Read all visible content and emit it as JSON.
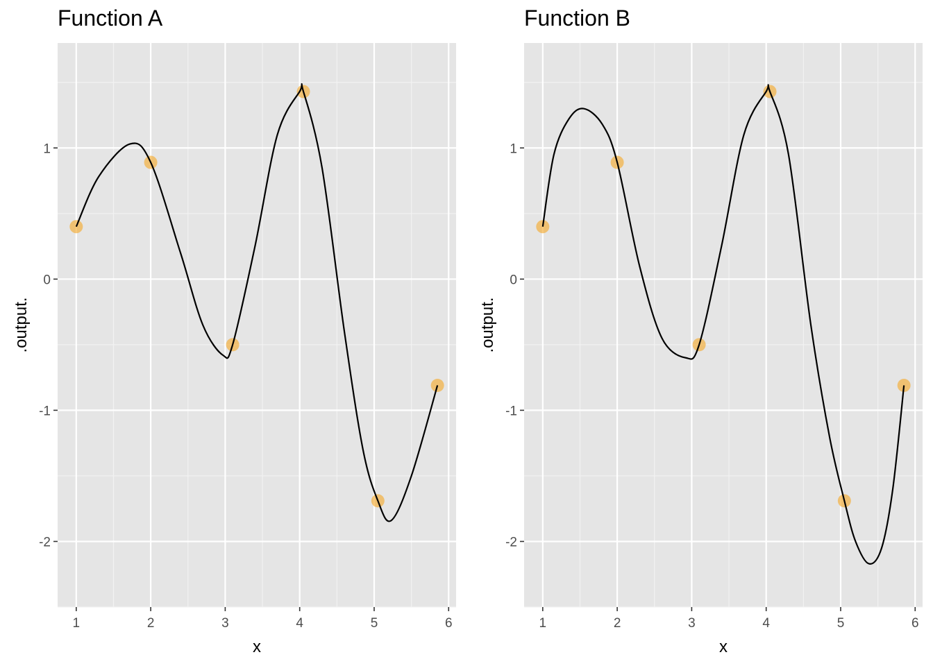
{
  "chart_data": [
    {
      "type": "line",
      "title": "Function A",
      "xlabel": "x",
      "ylabel": ".output.",
      "xlim": [
        0.75,
        6.1
      ],
      "ylim": [
        -2.5,
        1.8
      ],
      "x_ticks": [
        1,
        2,
        3,
        4,
        5,
        6
      ],
      "x_tick_labels": [
        "1",
        "2",
        "3",
        "4",
        "5",
        "6"
      ],
      "y_ticks": [
        -2,
        -1,
        0,
        1
      ],
      "y_tick_labels": [
        "-2",
        "-1",
        "0",
        "1"
      ],
      "grid": true,
      "background": "#e5e5e5",
      "line_color": "#000000",
      "point_color": "#f5a623",
      "points": {
        "x": [
          1.0,
          2.0,
          3.1,
          4.05,
          5.05,
          5.85
        ],
        "y": [
          0.4,
          0.89,
          -0.5,
          1.43,
          -1.69,
          -0.81
        ]
      },
      "curve": {
        "x": [
          1.0,
          1.3,
          1.72,
          2.0,
          2.4,
          2.7,
          2.97,
          3.1,
          3.4,
          3.7,
          4.0,
          4.05,
          4.3,
          4.6,
          4.85,
          5.05,
          5.23,
          5.5,
          5.85
        ],
        "y": [
          0.4,
          0.78,
          1.03,
          0.89,
          0.2,
          -0.35,
          -0.58,
          -0.5,
          0.25,
          1.1,
          1.43,
          1.43,
          0.85,
          -0.4,
          -1.3,
          -1.69,
          -1.84,
          -1.5,
          -0.81
        ]
      }
    },
    {
      "type": "line",
      "title": "Function B",
      "xlabel": "x",
      "ylabel": ".output.",
      "xlim": [
        0.75,
        6.1
      ],
      "ylim": [
        -2.5,
        1.8
      ],
      "x_ticks": [
        1,
        2,
        3,
        4,
        5,
        6
      ],
      "x_tick_labels": [
        "1",
        "2",
        "3",
        "4",
        "5",
        "6"
      ],
      "y_ticks": [
        -2,
        -1,
        0,
        1
      ],
      "y_tick_labels": [
        "-2",
        "-1",
        "0",
        "1"
      ],
      "grid": true,
      "background": "#e5e5e5",
      "line_color": "#000000",
      "point_color": "#f5a623",
      "points": {
        "x": [
          1.0,
          2.0,
          3.1,
          4.05,
          5.05,
          5.85
        ],
        "y": [
          0.4,
          0.89,
          -0.5,
          1.43,
          -1.69,
          -0.81
        ]
      },
      "curve": {
        "x": [
          1.0,
          1.15,
          1.35,
          1.55,
          1.8,
          2.0,
          2.3,
          2.6,
          2.92,
          3.1,
          3.4,
          3.7,
          4.0,
          4.05,
          4.3,
          4.6,
          4.85,
          5.05,
          5.2,
          5.38,
          5.55,
          5.7,
          5.85
        ],
        "y": [
          0.4,
          0.95,
          1.22,
          1.3,
          1.18,
          0.89,
          0.1,
          -0.45,
          -0.6,
          -0.5,
          0.25,
          1.1,
          1.43,
          1.43,
          0.95,
          -0.35,
          -1.2,
          -1.69,
          -2.0,
          -2.17,
          -2.05,
          -1.6,
          -0.81
        ]
      }
    }
  ]
}
